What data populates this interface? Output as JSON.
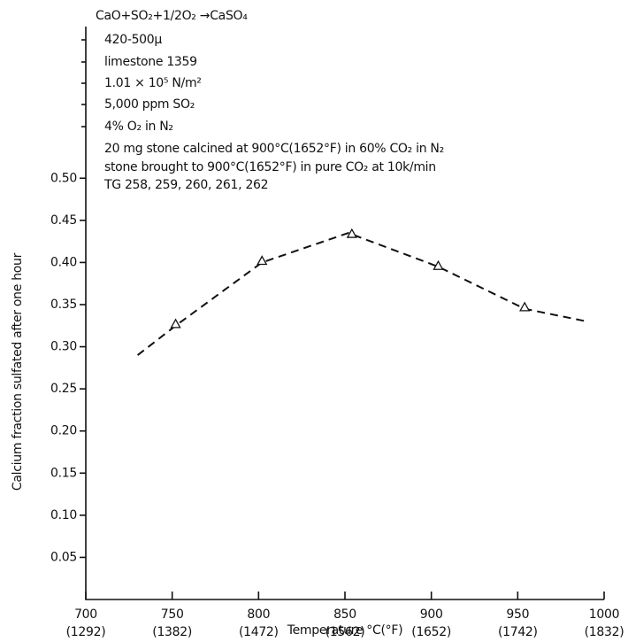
{
  "chart_data": {
    "type": "line",
    "title": "CaO+SO₂+1/2O₂ →CaSO₄",
    "annotations": [
      "420-500µ",
      "limestone 1359",
      "1.01 × 10⁵ N/m²",
      "5,000 ppm SO₂",
      "4% O₂ in N₂",
      "20 mg stone calcined at 900°C(1652°F) in 60% CO₂ in N₂",
      "stone brought to 900°C(1652°F) in pure CO₂ at 10k/min",
      "TG 258, 259, 260, 261, 262"
    ],
    "x_label": "Temperature °C(°F)",
    "y_label": "Calcium fraction sulfated after one hour",
    "xlim": [
      700,
      1000
    ],
    "ylim": [
      0,
      0.68
    ],
    "xticks": [
      700,
      750,
      800,
      850,
      900,
      950,
      1000
    ],
    "xtick_fahrenheit": [
      "(1292)",
      "(1382)",
      "(1472)",
      "(1562)",
      "(1652)",
      "(1742)",
      "(1832)"
    ],
    "yticks": [
      0.05,
      {
        "value": 0.1,
        "label": "0.10"
      },
      0.15,
      {
        "value": 0.2,
        "label": "0.20"
      },
      0.25,
      {
        "value": 0.3,
        "label": "0.30"
      },
      0.35,
      {
        "value": 0.4,
        "label": "0.40"
      },
      0.45,
      {
        "value": 0.5,
        "label": "0.50"
      }
    ],
    "grid": false,
    "color": "#111111",
    "points": {
      "x": [
        752,
        802,
        854,
        904,
        954
      ],
      "y": [
        0.327,
        0.402,
        0.434,
        0.396,
        0.347
      ]
    },
    "curve": {
      "x": [
        730,
        752,
        802,
        852,
        904,
        954,
        990
      ],
      "y": [
        0.29,
        0.325,
        0.4,
        0.435,
        0.395,
        0.345,
        0.33
      ]
    }
  }
}
